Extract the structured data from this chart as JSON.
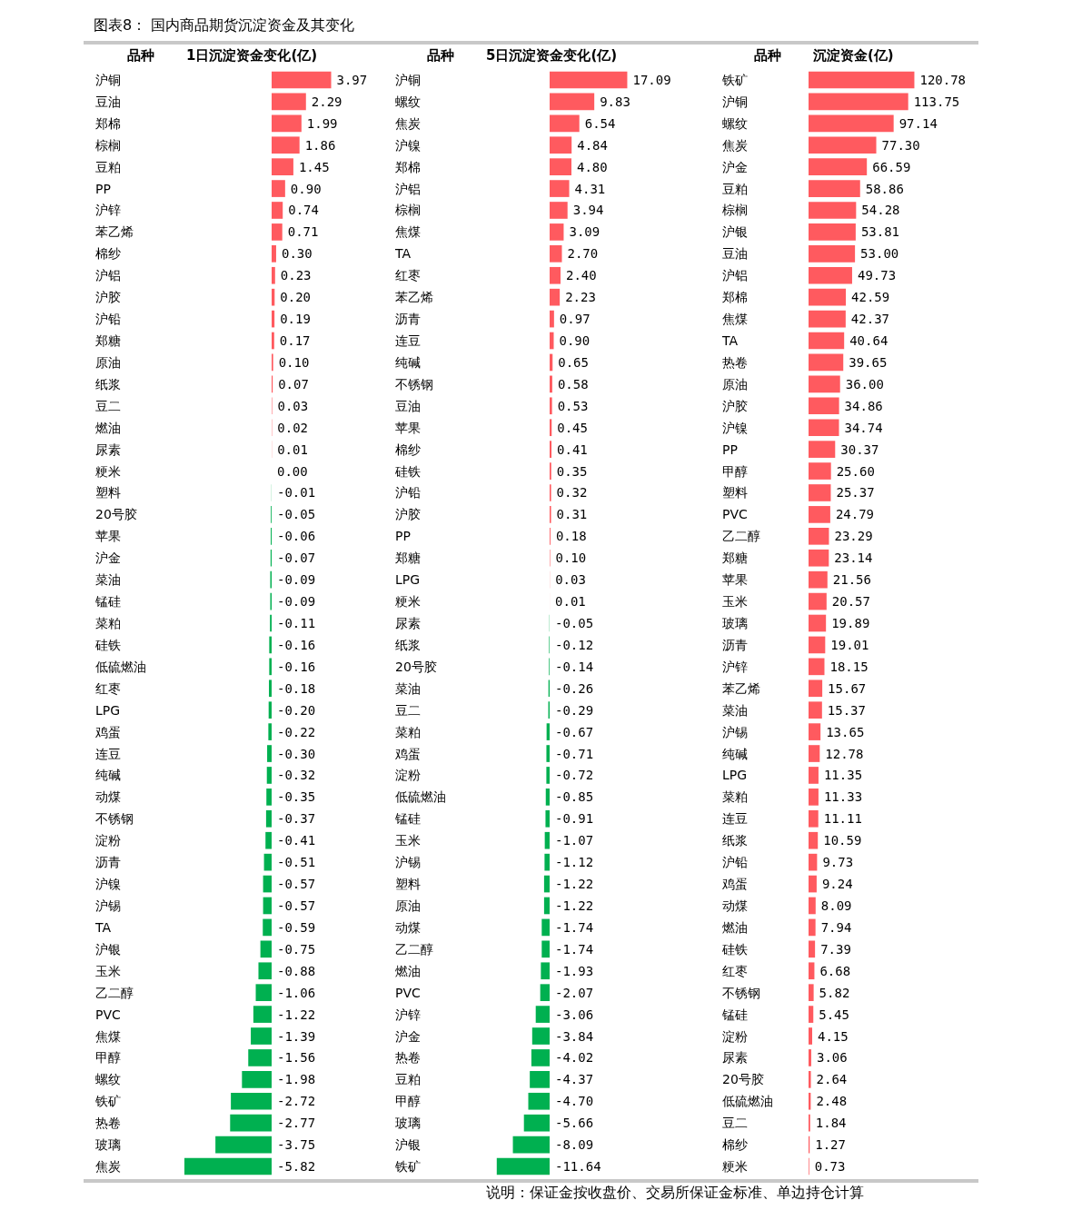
{
  "chart_data": [
    {
      "type": "bar",
      "orientation": "horizontal",
      "title": "图表8： 国内商品期货沉淀资金及其变化",
      "ylabel": "品种",
      "xlabel": "1日沉淀资金变化(亿)",
      "categories": [
        "沪铜",
        "豆油",
        "郑棉",
        "棕榈",
        "豆粕",
        "PP",
        "沪锌",
        "苯乙烯",
        "棉纱",
        "沪铝",
        "沪胶",
        "沪铅",
        "郑糖",
        "原油",
        "纸浆",
        "豆二",
        "燃油",
        "尿素",
        "粳米",
        "塑料",
        "20号胶",
        "苹果",
        "沪金",
        "菜油",
        "锰硅",
        "菜粕",
        "硅铁",
        "低硫燃油",
        "红枣",
        "LPG",
        "鸡蛋",
        "连豆",
        "纯碱",
        "动煤",
        "不锈钢",
        "淀粉",
        "沥青",
        "沪镍",
        "沪锡",
        "TA",
        "沪银",
        "玉米",
        "乙二醇",
        "PVC",
        "焦煤",
        "甲醇",
        "螺纹",
        "铁矿",
        "热卷",
        "玻璃",
        "焦炭"
      ],
      "values": [
        3.97,
        2.29,
        1.99,
        1.86,
        1.45,
        0.9,
        0.74,
        0.71,
        0.3,
        0.23,
        0.2,
        0.19,
        0.17,
        0.1,
        0.07,
        0.03,
        0.02,
        0.01,
        0.0,
        -0.01,
        -0.05,
        -0.06,
        -0.07,
        -0.09,
        -0.09,
        -0.11,
        -0.16,
        -0.16,
        -0.18,
        -0.2,
        -0.22,
        -0.3,
        -0.32,
        -0.35,
        -0.37,
        -0.41,
        -0.51,
        -0.57,
        -0.57,
        -0.59,
        -0.75,
        -0.88,
        -1.06,
        -1.22,
        -1.39,
        -1.56,
        -1.98,
        -2.72,
        -2.77,
        -3.75,
        -5.82
      ],
      "value_labels": [
        "3.97",
        "2.29",
        "1.99",
        "1.86",
        "1.45",
        "0.90",
        "0.74",
        "0.71",
        "0.30",
        "0.23",
        "0.20",
        "0.19",
        "0.17",
        "0.10",
        "0.07",
        "0.03",
        "0.02",
        "0.01",
        "0.00",
        "-0.01",
        "-0.05",
        "-0.06",
        "-0.07",
        "-0.09",
        "-0.09",
        "-0.11",
        "-0.16",
        "-0.16",
        "-0.18",
        "-0.20",
        "-0.22",
        "-0.30",
        "-0.32",
        "-0.35",
        "-0.37",
        "-0.41",
        "-0.51",
        "-0.57",
        "-0.57",
        "-0.59",
        "-0.75",
        "-0.88",
        "-1.06",
        "-1.22",
        "-1.39",
        "-1.56",
        "-1.98",
        "-2.72",
        "-2.77",
        "-3.75",
        "-5.82"
      ],
      "colors": [
        "#ff5a5f",
        "#ff5a5f",
        "#ff5a5f",
        "#ff5a5f",
        "#ff5a5f",
        "#ff5a5f",
        "#ff5a5f",
        "#ff5a5f",
        "#ff5a5f",
        "#ff5a5f",
        "#ff5a5f",
        "#ff5a5f",
        "#ff5a5f",
        "#ff5a5f",
        "#ff5a5f",
        "#ff5a5f",
        "#ff5a5f",
        "#ff5a5f",
        "#ff5a5f",
        "#00b050",
        "#00b050",
        "#00b050",
        "#00b050",
        "#00b050",
        "#00b050",
        "#00b050",
        "#00b050",
        "#00b050",
        "#00b050",
        "#00b050",
        "#00b050",
        "#00b050",
        "#00b050",
        "#00b050",
        "#00b050",
        "#00b050",
        "#00b050",
        "#00b050",
        "#00b050",
        "#00b050",
        "#00b050",
        "#00b050",
        "#00b050",
        "#00b050",
        "#00b050",
        "#00b050",
        "#00b050",
        "#00b050",
        "#00b050",
        "#00b050",
        "#00b050"
      ]
    },
    {
      "type": "bar",
      "orientation": "horizontal",
      "ylabel": "品种",
      "xlabel": "5日沉淀资金变化(亿)",
      "categories": [
        "沪铜",
        "螺纹",
        "焦炭",
        "沪镍",
        "郑棉",
        "沪铝",
        "棕榈",
        "焦煤",
        "TA",
        "红枣",
        "苯乙烯",
        "沥青",
        "连豆",
        "纯碱",
        "不锈钢",
        "豆油",
        "苹果",
        "棉纱",
        "硅铁",
        "沪铅",
        "沪胶",
        "PP",
        "郑糖",
        "LPG",
        "粳米",
        "尿素",
        "纸浆",
        "20号胶",
        "菜油",
        "豆二",
        "菜粕",
        "鸡蛋",
        "淀粉",
        "低硫燃油",
        "锰硅",
        "玉米",
        "沪锡",
        "塑料",
        "原油",
        "动煤",
        "乙二醇",
        "燃油",
        "PVC",
        "沪锌",
        "沪金",
        "热卷",
        "豆粕",
        "甲醇",
        "玻璃",
        "沪银",
        "铁矿"
      ],
      "values": [
        17.09,
        9.83,
        6.54,
        4.84,
        4.8,
        4.31,
        3.94,
        3.09,
        2.7,
        2.4,
        2.23,
        0.97,
        0.9,
        0.65,
        0.58,
        0.53,
        0.45,
        0.41,
        0.35,
        0.32,
        0.31,
        0.18,
        0.1,
        0.03,
        0.01,
        -0.05,
        -0.12,
        -0.14,
        -0.26,
        -0.29,
        -0.67,
        -0.71,
        -0.72,
        -0.85,
        -0.91,
        -1.07,
        -1.12,
        -1.22,
        -1.22,
        -1.74,
        -1.74,
        -1.93,
        -2.07,
        -3.06,
        -3.84,
        -4.02,
        -4.37,
        -4.7,
        -5.66,
        -8.09,
        -11.64
      ],
      "value_labels": [
        "17.09",
        "9.83",
        "6.54",
        "4.84",
        "4.80",
        "4.31",
        "3.94",
        "3.09",
        "2.70",
        "2.40",
        "2.23",
        "0.97",
        "0.90",
        "0.65",
        "0.58",
        "0.53",
        "0.45",
        "0.41",
        "0.35",
        "0.32",
        "0.31",
        "0.18",
        "0.10",
        "0.03",
        "0.01",
        "-0.05",
        "-0.12",
        "-0.14",
        "-0.26",
        "-0.29",
        "-0.67",
        "-0.71",
        "-0.72",
        "-0.85",
        "-0.91",
        "-1.07",
        "-1.12",
        "-1.22",
        "-1.22",
        "-1.74",
        "-1.74",
        "-1.93",
        "-2.07",
        "-3.06",
        "-3.84",
        "-4.02",
        "-4.37",
        "-4.70",
        "-5.66",
        "-8.09",
        "-11.64"
      ],
      "colors": [
        "#ff5a5f",
        "#ff5a5f",
        "#ff5a5f",
        "#ff5a5f",
        "#ff5a5f",
        "#ff5a5f",
        "#ff5a5f",
        "#ff5a5f",
        "#ff5a5f",
        "#ff5a5f",
        "#ff5a5f",
        "#ff5a5f",
        "#ff5a5f",
        "#ff5a5f",
        "#ff5a5f",
        "#ff5a5f",
        "#ff5a5f",
        "#ff5a5f",
        "#ff5a5f",
        "#ff5a5f",
        "#ff5a5f",
        "#ff5a5f",
        "#ff5a5f",
        "#ff5a5f",
        "#ff5a5f",
        "#00b050",
        "#00b050",
        "#00b050",
        "#00b050",
        "#00b050",
        "#00b050",
        "#00b050",
        "#00b050",
        "#00b050",
        "#00b050",
        "#00b050",
        "#00b050",
        "#00b050",
        "#00b050",
        "#00b050",
        "#00b050",
        "#00b050",
        "#00b050",
        "#00b050",
        "#00b050",
        "#00b050",
        "#00b050",
        "#00b050",
        "#00b050",
        "#00b050",
        "#00b050"
      ]
    },
    {
      "type": "bar",
      "orientation": "horizontal",
      "ylabel": "品种",
      "xlabel": "沉淀资金(亿)",
      "annotations": [
        "说明：保证金按收盘价、交易所保证金标准、单边持仓计算"
      ],
      "categories": [
        "铁矿",
        "沪铜",
        "螺纹",
        "焦炭",
        "沪金",
        "豆粕",
        "棕榈",
        "沪银",
        "豆油",
        "沪铝",
        "郑棉",
        "焦煤",
        "TA",
        "热卷",
        "原油",
        "沪胶",
        "沪镍",
        "PP",
        "甲醇",
        "塑料",
        "PVC",
        "乙二醇",
        "郑糖",
        "苹果",
        "玉米",
        "玻璃",
        "沥青",
        "沪锌",
        "苯乙烯",
        "菜油",
        "沪锡",
        "纯碱",
        "LPG",
        "菜粕",
        "连豆",
        "纸浆",
        "沪铅",
        "鸡蛋",
        "动煤",
        "燃油",
        "硅铁",
        "红枣",
        "不锈钢",
        "锰硅",
        "淀粉",
        "尿素",
        "20号胶",
        "低硫燃油",
        "豆二",
        "棉纱",
        "粳米"
      ],
      "values": [
        120.78,
        113.75,
        97.14,
        77.3,
        66.59,
        58.86,
        54.28,
        53.81,
        53.0,
        49.73,
        42.59,
        42.37,
        40.64,
        39.65,
        36.0,
        34.86,
        34.74,
        30.37,
        25.6,
        25.37,
        24.79,
        23.29,
        23.14,
        21.56,
        20.57,
        19.89,
        19.01,
        18.15,
        15.67,
        15.37,
        13.65,
        12.78,
        11.35,
        11.33,
        11.11,
        10.59,
        9.73,
        9.24,
        8.09,
        7.94,
        7.39,
        6.68,
        5.82,
        5.45,
        4.15,
        3.06,
        2.64,
        2.48,
        1.84,
        1.27,
        0.73
      ],
      "value_labels": [
        "120.78",
        "113.75",
        "97.14",
        "77.30",
        "66.59",
        "58.86",
        "54.28",
        "53.81",
        "53.00",
        "49.73",
        "42.59",
        "42.37",
        "40.64",
        "39.65",
        "36.00",
        "34.86",
        "34.74",
        "30.37",
        "25.60",
        "25.37",
        "24.79",
        "23.29",
        "23.14",
        "21.56",
        "20.57",
        "19.89",
        "19.01",
        "18.15",
        "15.67",
        "15.37",
        "13.65",
        "12.78",
        "11.35",
        "11.33",
        "11.11",
        "10.59",
        "9.73",
        "9.24",
        "8.09",
        "7.94",
        "7.39",
        "6.68",
        "5.82",
        "5.45",
        "4.15",
        "3.06",
        "2.64",
        "2.48",
        "1.84",
        "1.27",
        "0.73"
      ],
      "colors": [
        "#ff5a5f",
        "#ff5a5f",
        "#ff5a5f",
        "#ff5a5f",
        "#ff5a5f",
        "#ff5a5f",
        "#ff5a5f",
        "#ff5a5f",
        "#ff5a5f",
        "#ff5a5f",
        "#ff5a5f",
        "#ff5a5f",
        "#ff5a5f",
        "#ff5a5f",
        "#ff5a5f",
        "#ff5a5f",
        "#ff5a5f",
        "#ff5a5f",
        "#ff5a5f",
        "#ff5a5f",
        "#ff5a5f",
        "#ff5a5f",
        "#ff5a5f",
        "#ff5a5f",
        "#ff5a5f",
        "#ff5a5f",
        "#ff5a5f",
        "#ff5a5f",
        "#ff5a5f",
        "#ff5a5f",
        "#ff5a5f",
        "#ff5a5f",
        "#ff5a5f",
        "#ff5a5f",
        "#ff5a5f",
        "#ff5a5f",
        "#ff5a5f",
        "#ff5a5f",
        "#ff5a5f",
        "#ff5a5f",
        "#ff5a5f",
        "#ff5a5f",
        "#ff5a5f",
        "#ff5a5f",
        "#ff5a5f",
        "#ff5a5f",
        "#ff5a5f",
        "#ff5a5f",
        "#ff5a5f",
        "#ff5a5f",
        "#ff5a5f"
      ]
    }
  ]
}
